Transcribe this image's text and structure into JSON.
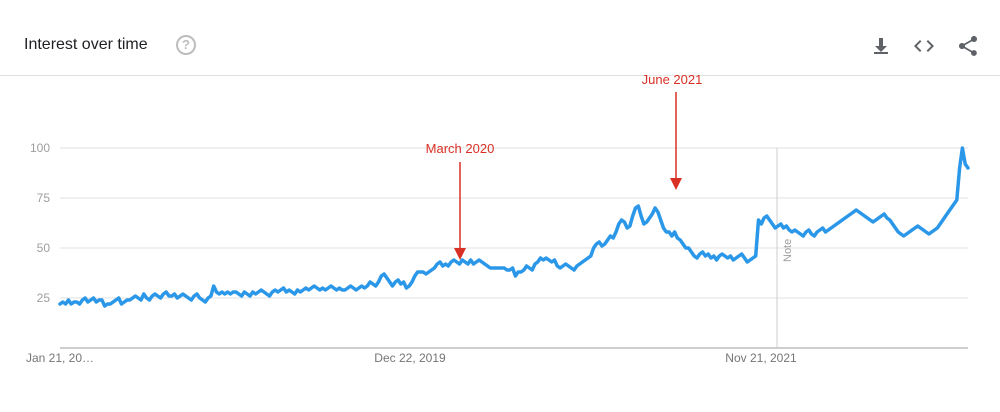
{
  "header": {
    "title": "Interest over time",
    "help_icon": "help-circle-icon",
    "tools": [
      "download-icon",
      "embed-code-icon",
      "share-icon"
    ]
  },
  "colors": {
    "line": "#2b97e8",
    "annotation": "#d93025",
    "grid": "#e0e0e0",
    "note_line": "#cccccc"
  },
  "chart_data": {
    "type": "line",
    "title": "Interest over time",
    "xlabel": "",
    "ylabel": "",
    "ylim": [
      0,
      100
    ],
    "yticks": [
      25,
      50,
      75,
      100
    ],
    "x_tick_labels": [
      "Jan 21, 20…",
      "Dec 22, 2019",
      "Nov 21, 2021"
    ],
    "note_label": "Note",
    "annotations": [
      "March 2020",
      "June 2021"
    ],
    "series": [
      {
        "values": [
          22,
          23,
          22,
          24,
          22,
          23,
          23,
          22,
          24,
          25,
          23,
          24,
          25,
          23,
          24,
          24,
          21,
          22,
          22,
          23,
          24,
          25,
          22,
          23,
          24,
          24,
          25,
          26,
          25,
          24,
          27,
          25,
          24,
          26,
          27,
          26,
          25,
          27,
          28,
          26,
          26,
          27,
          25,
          26,
          27,
          26,
          25,
          24,
          26,
          27,
          25,
          24,
          23,
          25,
          26,
          31,
          28,
          27,
          28,
          27,
          28,
          27,
          28,
          28,
          27,
          26,
          28,
          27,
          26,
          28,
          27,
          28,
          29,
          28,
          27,
          26,
          28,
          29,
          28,
          29,
          30,
          28,
          29,
          28,
          27,
          29,
          28,
          29,
          30,
          29,
          30,
          31,
          30,
          29,
          30,
          29,
          30,
          31,
          30,
          29,
          30,
          29,
          29,
          30,
          31,
          30,
          29,
          30,
          31,
          30,
          31,
          33,
          32,
          31,
          33,
          36,
          37,
          35,
          33,
          31,
          33,
          34,
          32,
          33,
          30,
          31,
          33,
          36,
          38,
          38,
          38,
          37,
          38,
          39,
          40,
          42,
          43,
          41,
          42,
          41,
          43,
          44,
          43,
          42,
          44,
          43,
          42,
          44,
          42,
          43,
          44,
          43,
          42,
          41,
          40,
          40,
          40,
          40,
          40,
          40,
          39,
          39,
          40,
          36,
          38,
          38,
          39,
          41,
          40,
          39,
          42,
          43,
          45,
          44,
          45,
          44,
          43,
          44,
          41,
          40,
          41,
          42,
          41,
          40,
          39,
          41,
          42,
          43,
          44,
          45,
          46,
          50,
          52,
          53,
          51,
          52,
          54,
          56,
          55,
          58,
          62,
          64,
          63,
          60,
          61,
          66,
          70,
          71,
          66,
          62,
          63,
          65,
          67,
          70,
          68,
          64,
          60,
          58,
          58,
          56,
          58,
          55,
          54,
          52,
          50,
          50,
          48,
          46,
          45,
          47,
          48,
          46,
          47,
          45,
          46,
          44,
          46,
          47,
          46,
          45,
          46,
          44,
          45,
          46,
          47,
          45,
          43,
          44,
          45,
          46,
          64,
          62,
          65,
          66,
          64,
          62,
          60,
          61,
          62,
          60,
          61,
          59,
          58,
          59,
          58,
          57,
          56,
          58,
          59,
          57,
          56,
          58,
          59,
          60,
          58,
          59,
          60,
          61,
          62,
          63,
          64,
          65,
          66,
          67,
          68,
          69,
          68,
          67,
          66,
          65,
          64,
          63,
          64,
          65,
          66,
          67,
          65,
          64,
          62,
          60,
          58,
          57,
          56,
          57,
          58,
          59,
          60,
          61,
          60,
          59,
          58,
          57,
          58,
          59,
          60,
          62,
          64,
          66,
          68,
          70,
          72,
          74,
          90,
          100,
          92,
          90
        ]
      }
    ]
  }
}
